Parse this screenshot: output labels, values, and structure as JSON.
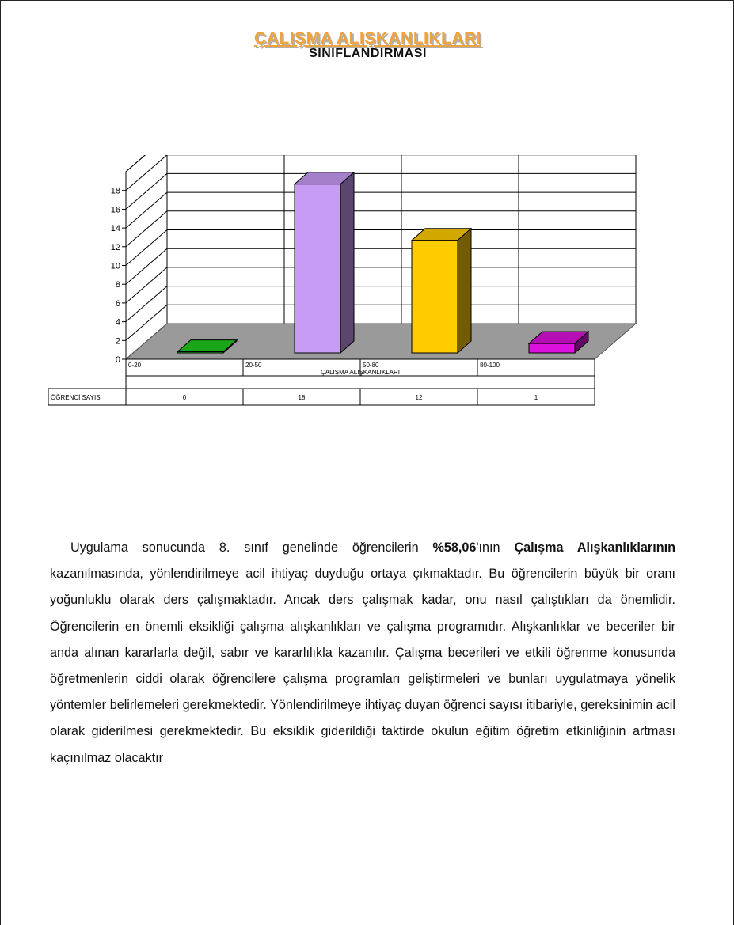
{
  "header": {
    "title": "ÇALIŞMA ALIŞKANLIKLARI",
    "subtitle": "SINIFLANDIRMASI"
  },
  "chart_data": {
    "type": "bar",
    "categories": [
      "0-20",
      "20-50",
      "50-80",
      "80-100"
    ],
    "values": [
      0,
      18,
      12,
      1
    ],
    "value_labels": [
      "0",
      "18",
      "12",
      "1"
    ],
    "xlabel": "ÇALIŞMA ALIŞKANLIKLARI",
    "ylabel": "",
    "ylim": [
      0,
      18
    ],
    "yticks": [
      "0",
      "2",
      "4",
      "6",
      "8",
      "10",
      "12",
      "14",
      "16",
      "18"
    ],
    "table_row_label": "ÖĞRENCİ SAYISI",
    "bar_colors": [
      "#1fcc1f",
      "#c79cf5",
      "#ffcc00",
      "#dd11dd"
    ],
    "grid": true,
    "style": "3d"
  },
  "body": {
    "intro": "Uygulama sonucunda 8. sınıf genelinde öğrencilerin ",
    "percent": "%58,06",
    "mid": "'ının ",
    "bold_phrase": "Çalışma Alışkanlıklarının",
    "rest": " kazanılmasında, yönlendirilmeye acil ihtiyaç duyduğu ortaya çıkmaktadır. Bu öğrencilerin büyük bir oranı yoğunluklu olarak ders çalışmaktadır. Ancak ders çalışmak kadar, onu nasıl çalıştıkları da önemlidir. Öğrencilerin en önemli eksikliği çalışma alışkanlıkları ve çalışma programıdır. Alışkanlıklar ve beceriler bir anda alınan kararlarla değil, sabır ve kararlılıkla kazanılır. Çalışma becerileri ve etkili öğrenme konusunda öğretmenlerin ciddi olarak öğrencilere çalışma programları geliştirmeleri ve bunları uygulatmaya yönelik yöntemler belirlemeleri gerekmektedir. Yönlendirilmeye ihtiyaç duyan öğrenci sayısı itibariyle, gereksinimin acil olarak giderilmesi gerekmektedir. Bu eksiklik giderildiği taktirde okulun eğitim öğretim etkinliğinin artması kaçınılmaz olacaktır"
  }
}
